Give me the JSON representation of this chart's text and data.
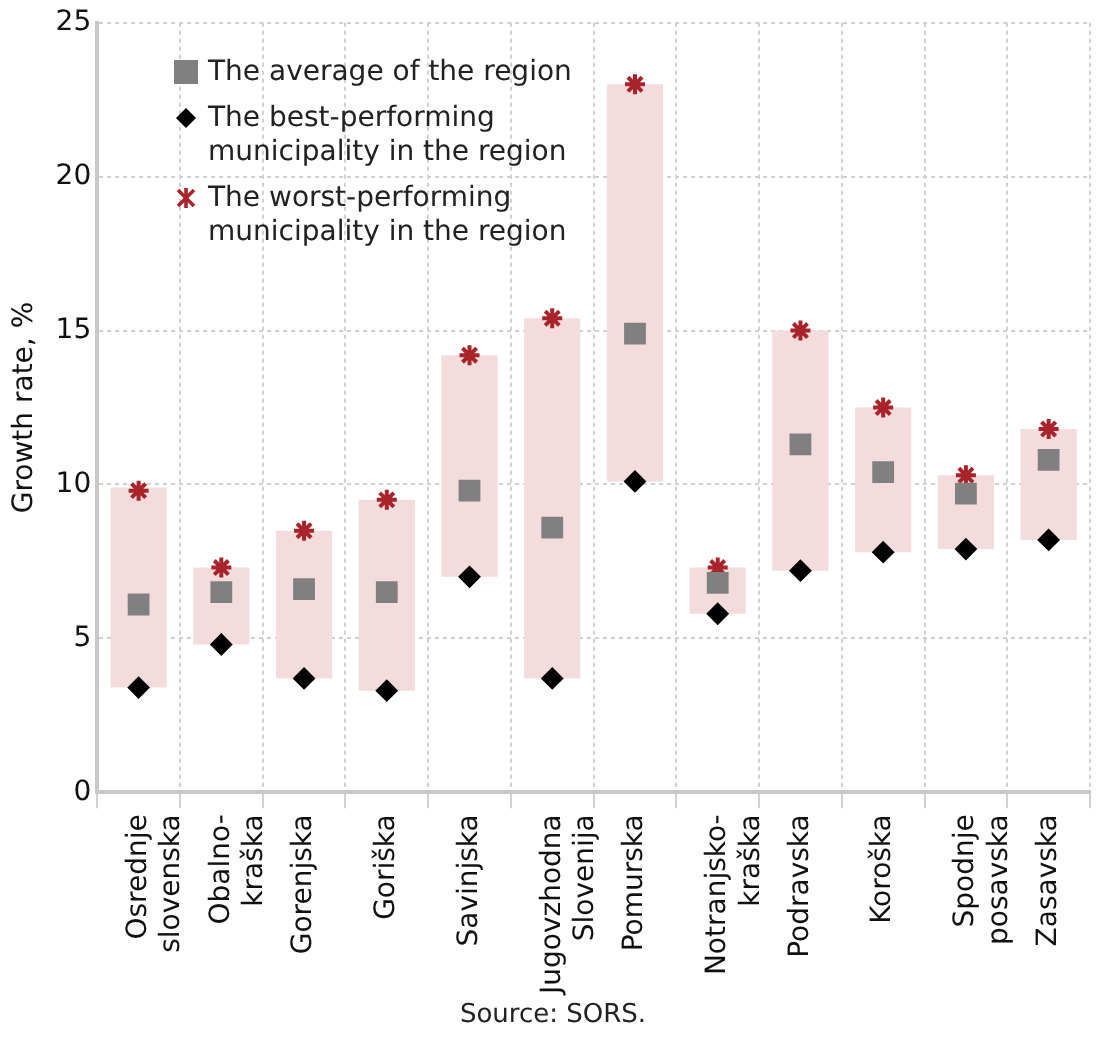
{
  "chart_data": {
    "type": "bar",
    "ylabel": "Growth rate, %",
    "categories": [
      "Osrednje\nslovenska",
      "Obalno-\nkraška",
      "Gorenjska",
      "Goriška",
      "Savinjska",
      "Jugovzhodna\nSlovenija",
      "Pomurska",
      "Notranjsko-\nkraška",
      "Podravska",
      "Koroška",
      "Spodnje\nposavska",
      "Zasavska"
    ],
    "series": [
      {
        "color": "#f4dcdc",
        "base": [
          3.4,
          4.8,
          3.7,
          3.3,
          7.0,
          3.7,
          10.1,
          5.8,
          7.2,
          7.8,
          7.9,
          8.2
        ],
        "values": [
          6.5,
          2.5,
          4.8,
          6.2,
          7.2,
          11.7,
          12.9,
          1.5,
          7.8,
          4.7,
          2.4,
          3.6
        ]
      },
      {
        "type": "scatter",
        "name": "The average of the region",
        "color": "#808080",
        "marker": "square",
        "values": [
          6.1,
          6.5,
          6.6,
          6.5,
          9.8,
          8.6,
          14.9,
          6.8,
          11.3,
          10.4,
          9.7,
          10.8
        ]
      },
      {
        "type": "scatter",
        "name": "The best-performing municipality in the region",
        "color": "#000000",
        "marker": "diamond",
        "values": [
          3.4,
          4.8,
          3.7,
          3.3,
          7.0,
          3.7,
          10.1,
          5.8,
          7.2,
          7.8,
          7.9,
          8.2
        ]
      },
      {
        "type": "scatter",
        "name": "The worst-performing municipality in the region",
        "color": "#a8242a",
        "marker": "cross",
        "values": [
          9.8,
          7.3,
          8.5,
          9.5,
          14.2,
          15.4,
          23.0,
          7.3,
          15.0,
          12.5,
          10.3,
          11.8
        ]
      }
    ],
    "ylim": [
      0,
      25
    ],
    "yticks": [
      0,
      5,
      10,
      15,
      20,
      25
    ],
    "grid": true,
    "legend": "top left",
    "annotations": [
      "Source: SORS."
    ]
  }
}
